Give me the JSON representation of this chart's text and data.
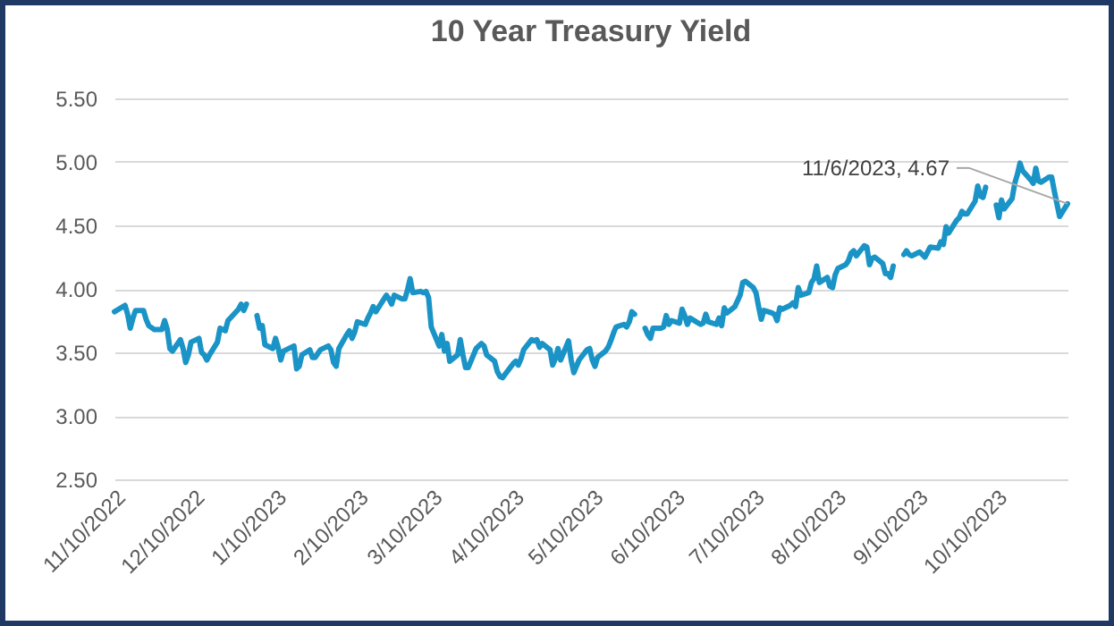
{
  "chart_data": {
    "type": "line",
    "title": "10 Year Treasury Yield",
    "x": [
      "2022-11-10",
      "2022-11-14",
      "2022-11-15",
      "2022-11-16",
      "2022-11-17",
      "2022-11-18",
      "2022-11-21",
      "2022-11-22",
      "2022-11-23",
      "2022-11-25",
      "2022-11-28",
      "2022-11-29",
      "2022-11-30",
      "2022-12-01",
      "2022-12-02",
      "2022-12-05",
      "2022-12-06",
      "2022-12-07",
      "2022-12-08",
      "2022-12-09",
      "2022-12-12",
      "2022-12-13",
      "2022-12-14",
      "2022-12-15",
      "2022-12-16",
      "2022-12-19",
      "2022-12-20",
      "2022-12-21",
      "2022-12-22",
      "2022-12-23",
      "2022-12-27",
      "2022-12-28",
      "2022-12-29",
      "2022-12-30",
      "2023-01-02",
      "2023-01-03",
      "2023-01-04",
      "2023-01-05",
      "2023-01-06",
      "2023-01-09",
      "2023-01-10",
      "2023-01-11",
      "2023-01-12",
      "2023-01-13",
      "2023-01-17",
      "2023-01-18",
      "2023-01-19",
      "2023-01-20",
      "2023-01-23",
      "2023-01-24",
      "2023-01-25",
      "2023-01-26",
      "2023-01-27",
      "2023-01-30",
      "2023-01-31",
      "2023-02-01",
      "2023-02-02",
      "2023-02-03",
      "2023-02-06",
      "2023-02-07",
      "2023-02-08",
      "2023-02-09",
      "2023-02-10",
      "2023-02-13",
      "2023-02-14",
      "2023-02-15",
      "2023-02-16",
      "2023-02-17",
      "2023-02-21",
      "2023-02-22",
      "2023-02-23",
      "2023-02-24",
      "2023-02-27",
      "2023-02-28",
      "2023-03-01",
      "2023-03-02",
      "2023-03-03",
      "2023-03-06",
      "2023-03-07",
      "2023-03-08",
      "2023-03-09",
      "2023-03-10",
      "2023-03-13",
      "2023-03-14",
      "2023-03-15",
      "2023-03-16",
      "2023-03-17",
      "2023-03-20",
      "2023-03-21",
      "2023-03-22",
      "2023-03-23",
      "2023-03-24",
      "2023-03-27",
      "2023-03-28",
      "2023-03-29",
      "2023-03-30",
      "2023-03-31",
      "2023-04-03",
      "2023-04-04",
      "2023-04-05",
      "2023-04-06",
      "2023-04-10",
      "2023-04-11",
      "2023-04-12",
      "2023-04-13",
      "2023-04-14",
      "2023-04-17",
      "2023-04-18",
      "2023-04-19",
      "2023-04-20",
      "2023-04-21",
      "2023-04-24",
      "2023-04-25",
      "2023-04-26",
      "2023-04-27",
      "2023-04-28",
      "2023-05-01",
      "2023-05-02",
      "2023-05-03",
      "2023-05-04",
      "2023-05-05",
      "2023-05-08",
      "2023-05-09",
      "2023-05-10",
      "2023-05-11",
      "2023-05-12",
      "2023-05-15",
      "2023-05-16",
      "2023-05-17",
      "2023-05-18",
      "2023-05-19",
      "2023-05-22",
      "2023-05-23",
      "2023-05-24",
      "2023-05-25",
      "2023-05-26",
      "2023-05-29",
      "2023-05-30",
      "2023-05-31",
      "2023-06-01",
      "2023-06-02",
      "2023-06-05",
      "2023-06-06",
      "2023-06-07",
      "2023-06-08",
      "2023-06-09",
      "2023-06-12",
      "2023-06-13",
      "2023-06-14",
      "2023-06-15",
      "2023-06-16",
      "2023-06-20",
      "2023-06-21",
      "2023-06-22",
      "2023-06-23",
      "2023-06-26",
      "2023-06-27",
      "2023-06-28",
      "2023-06-29",
      "2023-06-30",
      "2023-07-03",
      "2023-07-05",
      "2023-07-06",
      "2023-07-07",
      "2023-07-10",
      "2023-07-11",
      "2023-07-12",
      "2023-07-13",
      "2023-07-14",
      "2023-07-17",
      "2023-07-18",
      "2023-07-19",
      "2023-07-20",
      "2023-07-21",
      "2023-07-24",
      "2023-07-25",
      "2023-07-26",
      "2023-07-27",
      "2023-07-28",
      "2023-07-31",
      "2023-08-01",
      "2023-08-02",
      "2023-08-03",
      "2023-08-04",
      "2023-08-07",
      "2023-08-08",
      "2023-08-09",
      "2023-08-10",
      "2023-08-11",
      "2023-08-14",
      "2023-08-15",
      "2023-08-16",
      "2023-08-17",
      "2023-08-18",
      "2023-08-21",
      "2023-08-22",
      "2023-08-23",
      "2023-08-24",
      "2023-08-25",
      "2023-08-28",
      "2023-08-29",
      "2023-08-30",
      "2023-08-31",
      "2023-09-01",
      "2023-09-04",
      "2023-09-05",
      "2023-09-06",
      "2023-09-07",
      "2023-09-08",
      "2023-09-11",
      "2023-09-12",
      "2023-09-13",
      "2023-09-14",
      "2023-09-15",
      "2023-09-18",
      "2023-09-19",
      "2023-09-20",
      "2023-09-21",
      "2023-09-22",
      "2023-09-25",
      "2023-09-26",
      "2023-09-27",
      "2023-09-28",
      "2023-09-29",
      "2023-10-02",
      "2023-10-03",
      "2023-10-04",
      "2023-10-05",
      "2023-10-06",
      "2023-10-09",
      "2023-10-10",
      "2023-10-11",
      "2023-10-12",
      "2023-10-13",
      "2023-10-16",
      "2023-10-17",
      "2023-10-18",
      "2023-10-19",
      "2023-10-20",
      "2023-10-23",
      "2023-10-24",
      "2023-10-25",
      "2023-10-26",
      "2023-10-27",
      "2023-10-30",
      "2023-10-31",
      "2023-11-01",
      "2023-11-02",
      "2023-11-03",
      "2023-11-06"
    ],
    "series": [
      {
        "color": "#1a93c6",
        "values": [
          3.82,
          3.87,
          3.8,
          3.69,
          3.77,
          3.83,
          3.83,
          3.76,
          3.71,
          3.68,
          3.68,
          3.75,
          3.68,
          3.53,
          3.51,
          3.6,
          3.53,
          3.42,
          3.48,
          3.58,
          3.61,
          3.5,
          3.48,
          3.44,
          3.48,
          3.58,
          3.69,
          3.68,
          3.67,
          3.75,
          3.84,
          3.88,
          3.83,
          3.88,
          null,
          3.79,
          3.69,
          3.71,
          3.56,
          3.53,
          3.61,
          3.54,
          3.44,
          3.51,
          3.55,
          3.37,
          3.39,
          3.48,
          3.52,
          3.46,
          3.46,
          3.49,
          3.52,
          3.55,
          3.52,
          3.42,
          3.39,
          3.53,
          3.64,
          3.67,
          3.61,
          3.66,
          3.74,
          3.72,
          3.77,
          3.81,
          3.86,
          3.82,
          3.95,
          3.92,
          3.88,
          3.95,
          3.92,
          3.92,
          3.99,
          4.08,
          3.97,
          3.98,
          3.97,
          3.98,
          3.93,
          3.7,
          3.55,
          3.64,
          3.51,
          3.57,
          3.43,
          3.48,
          3.6,
          3.48,
          3.38,
          3.38,
          3.53,
          3.55,
          3.57,
          3.55,
          3.48,
          3.43,
          3.35,
          3.31,
          3.3,
          3.41,
          3.43,
          3.4,
          3.45,
          3.52,
          3.6,
          3.59,
          3.6,
          3.54,
          3.57,
          3.52,
          3.4,
          3.45,
          3.53,
          3.44,
          3.59,
          3.44,
          3.34,
          3.39,
          3.44,
          3.52,
          3.53,
          3.44,
          3.39,
          3.46,
          3.51,
          3.54,
          3.59,
          3.65,
          3.7,
          3.72,
          3.7,
          3.74,
          3.82,
          3.8,
          null,
          3.69,
          3.64,
          3.61,
          3.69,
          3.69,
          3.7,
          3.79,
          3.72,
          3.75,
          3.73,
          3.84,
          3.79,
          3.72,
          3.77,
          3.72,
          3.73,
          3.8,
          3.74,
          3.72,
          3.77,
          3.71,
          3.85,
          3.81,
          3.86,
          3.95,
          4.05,
          4.06,
          4.01,
          3.97,
          3.86,
          3.76,
          3.83,
          3.81,
          3.8,
          3.75,
          3.85,
          3.84,
          3.87,
          3.89,
          3.86,
          4.01,
          3.95,
          3.97,
          4.05,
          4.08,
          4.18,
          4.05,
          4.09,
          4.02,
          4.01,
          4.11,
          4.16,
          4.19,
          4.22,
          4.28,
          4.3,
          4.26,
          4.34,
          4.33,
          4.19,
          4.24,
          4.25,
          4.2,
          4.12,
          4.12,
          4.09,
          4.18,
          null,
          4.27,
          4.3,
          4.27,
          4.26,
          4.29,
          4.27,
          4.25,
          4.29,
          4.33,
          4.32,
          4.37,
          4.35,
          4.49,
          4.44,
          4.54,
          4.56,
          4.61,
          4.59,
          4.59,
          4.69,
          4.81,
          4.73,
          4.72,
          4.8,
          null,
          4.66,
          4.56,
          4.7,
          4.63,
          4.71,
          4.83,
          4.9,
          4.99,
          4.93,
          4.86,
          4.83,
          4.95,
          4.85,
          4.84,
          4.88,
          4.88,
          4.77,
          4.67,
          4.57,
          4.67
        ]
      }
    ],
    "xlim": [
      "2022-11-10",
      "2023-11-06"
    ],
    "xticks": [
      {
        "value": "2022-11-10",
        "label": "11/10/2022"
      },
      {
        "value": "2022-12-10",
        "label": "12/10/2022"
      },
      {
        "value": "2023-01-10",
        "label": "1/10/2023"
      },
      {
        "value": "2023-02-10",
        "label": "2/10/2023"
      },
      {
        "value": "2023-03-10",
        "label": "3/10/2023"
      },
      {
        "value": "2023-04-10",
        "label": "4/10/2023"
      },
      {
        "value": "2023-05-10",
        "label": "5/10/2023"
      },
      {
        "value": "2023-06-10",
        "label": "6/10/2023"
      },
      {
        "value": "2023-07-10",
        "label": "7/10/2023"
      },
      {
        "value": "2023-08-10",
        "label": "8/10/2023"
      },
      {
        "value": "2023-09-10",
        "label": "9/10/2023"
      },
      {
        "value": "2023-10-10",
        "label": "10/10/2023"
      }
    ],
    "ylim": [
      2.5,
      5.5
    ],
    "yticks": [
      {
        "value": 2.5,
        "label": "2.50"
      },
      {
        "value": 3,
        "label": "3.00"
      },
      {
        "value": 3.5,
        "label": "3.50"
      },
      {
        "value": 4,
        "label": "4.00"
      },
      {
        "value": 4.5,
        "label": "4.50"
      },
      {
        "value": 5,
        "label": "5.00"
      },
      {
        "value": 5.5,
        "label": "5.50"
      }
    ],
    "grid": "y",
    "annotations": [
      {
        "text": "11/6/2023, 4.67",
        "x": "2023-11-06",
        "y": 4.67
      }
    ]
  }
}
